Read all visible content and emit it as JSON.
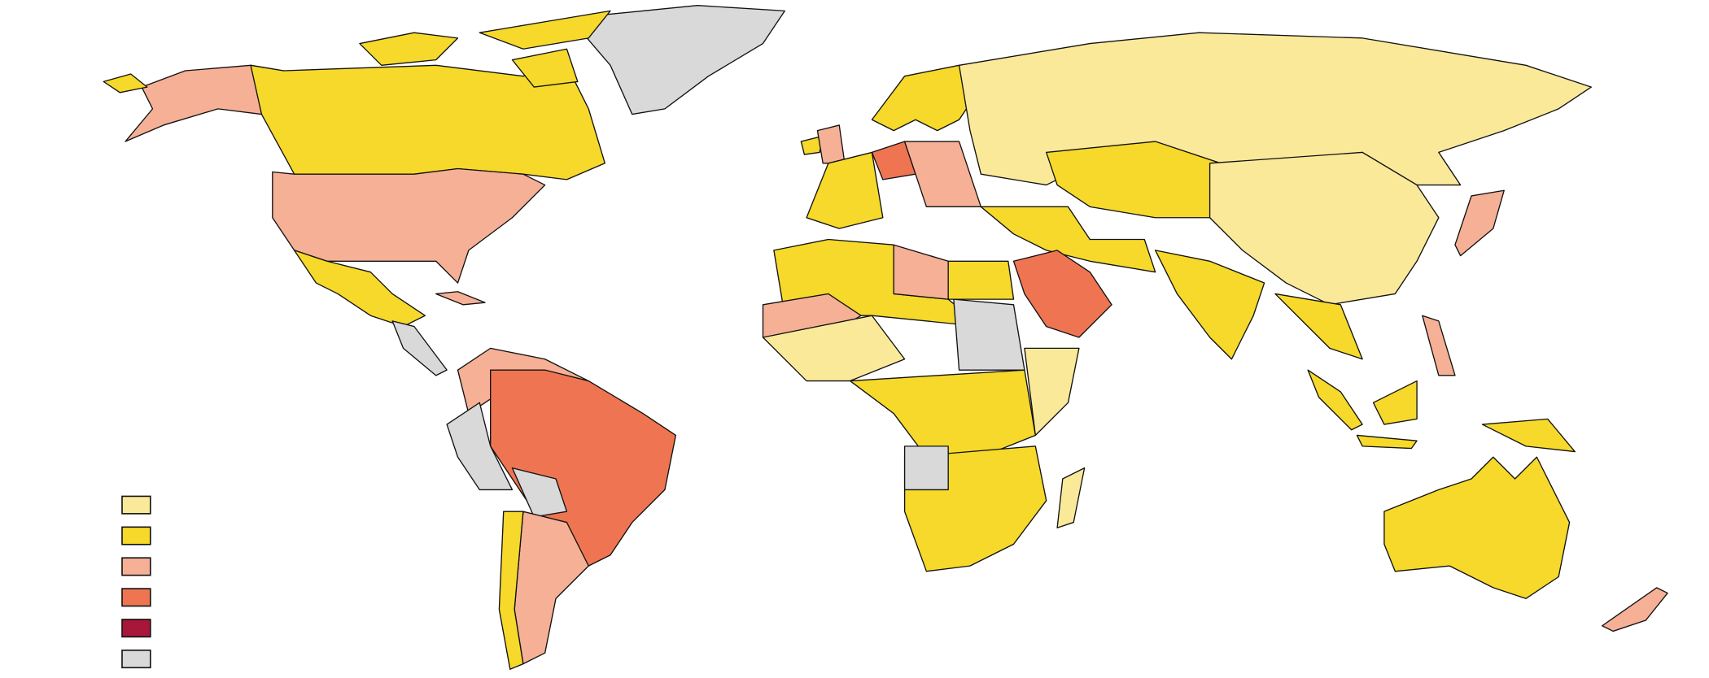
{
  "legend": {
    "colors": [
      "#fbe99a",
      "#f6d92a",
      "#f5b096",
      "#ef7552",
      "#a8173a",
      "#d9d9d9"
    ]
  }
}
